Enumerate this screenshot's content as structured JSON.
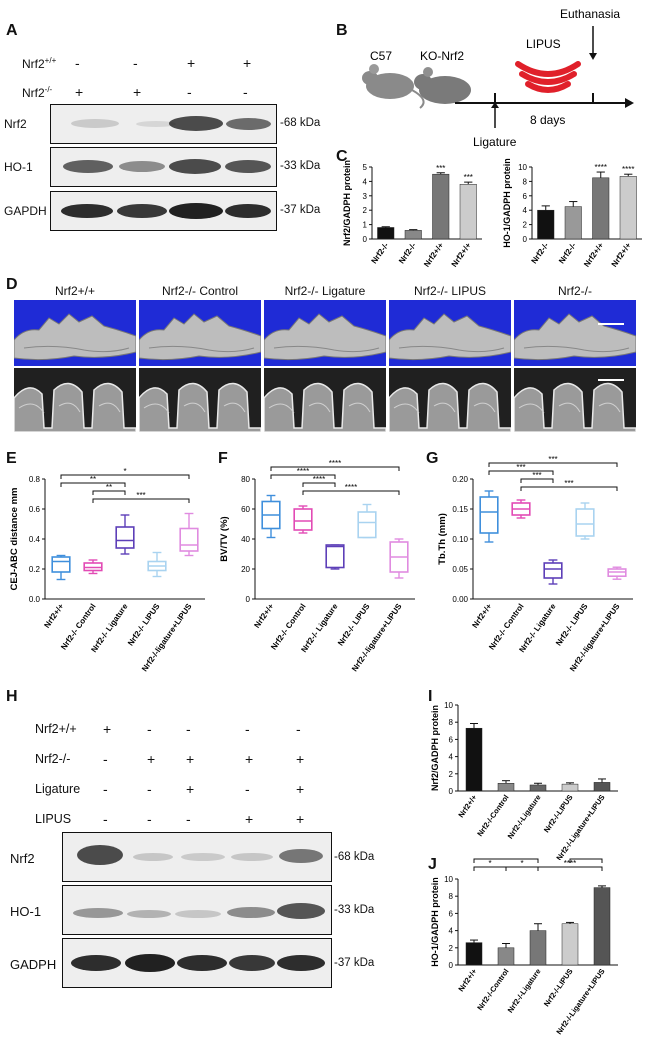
{
  "panels": {
    "A": "A",
    "B": "B",
    "C": "C",
    "D": "D",
    "E": "E",
    "F": "F",
    "G": "G",
    "H": "H",
    "I": "I",
    "J": "J"
  },
  "panelA": {
    "row_wt": "Nrf2+/+",
    "row_ko": "Nrf2-/-",
    "wt_signs": [
      "-",
      "-",
      "+",
      "+"
    ],
    "ko_signs": [
      "+",
      "+",
      "-",
      "-"
    ],
    "blots": [
      {
        "name": "Nrf2",
        "kda": "68 kDa"
      },
      {
        "name": "HO-1",
        "kda": "33 kDa"
      },
      {
        "name": "GAPDH",
        "kda": "37 kDa"
      }
    ]
  },
  "panelB": {
    "c57": "C57",
    "ko": "KO-Nrf2",
    "lipus": "LIPUS",
    "euth": "Euthanasia",
    "days": "8 days",
    "ligature": "Ligature"
  },
  "panelC": {
    "chart1": {
      "ylabel": "Nrf2/GADPH protein",
      "ticks": [
        "0",
        "1",
        "2",
        "3",
        "4",
        "5"
      ]
    },
    "chart2": {
      "ylabel": "HO-1/GADPH protein",
      "ticks": [
        "0",
        "2",
        "4",
        "6",
        "8",
        "10"
      ]
    },
    "cats": [
      "Nrf2-/-",
      "Nrf2-/-",
      "Nrf2+/+",
      "Nrf2+/+"
    ]
  },
  "panelD": {
    "titles": [
      "Nrf2+/+",
      "Nrf2-/- Control",
      "Nrf2-/-  Ligature",
      "Nrf2-/-  LIPUS",
      "Nrf2-/-  Ligature+LIPUS"
    ]
  },
  "panelE": {
    "ylabel": "CEJ-ABC distance mm",
    "ticks": [
      "0.0",
      "0.2",
      "0.4",
      "0.6",
      "0.8"
    ]
  },
  "panelF": {
    "ylabel": "BV/TV (%)",
    "ticks": [
      "0",
      "20",
      "40",
      "60",
      "80"
    ]
  },
  "panelG": {
    "ylabel": "Tb.Th (mm)",
    "ticks": [
      "0.00",
      "0.05",
      "0.10",
      "0.15",
      "0.20"
    ]
  },
  "boxcats": [
    "Nrf2+/+",
    "Nrf2-/- Control",
    "Nrf2-/- Ligature",
    "Nrf2-/- LIPUS",
    "Nrf2-/-ligature+LIPUS"
  ],
  "panelH": {
    "rows": [
      {
        "label": "Nrf2+/+",
        "signs": [
          "+",
          "-",
          "-",
          "-",
          "-"
        ]
      },
      {
        "label": "Nrf2-/-",
        "signs": [
          "-",
          "+",
          "+",
          "+",
          "+"
        ]
      },
      {
        "label": "Ligature",
        "signs": [
          "-",
          "-",
          "+",
          "-",
          "+"
        ]
      },
      {
        "label": "LIPUS",
        "signs": [
          "-",
          "-",
          "-",
          "+",
          "+"
        ]
      }
    ],
    "blots": [
      {
        "name": "Nrf2",
        "kda": "68 kDa"
      },
      {
        "name": "HO-1",
        "kda": "33 kDa"
      },
      {
        "name": "GADPH",
        "kda": "37 kDa"
      }
    ]
  },
  "panelI": {
    "ylabel": "Nrf2/GADPH protein",
    "ticks": [
      "0",
      "2",
      "4",
      "6",
      "8",
      "10"
    ]
  },
  "panelJ": {
    "ylabel": "HO-1/GADPH protein",
    "ticks": [
      "0",
      "2",
      "4",
      "6",
      "8",
      "10"
    ]
  },
  "barcats5": [
    "Nrf2+/+",
    "Nrf2-/-Control",
    "Nrf2-/-Ligature",
    "Nrf2-/-LIPUS",
    "Nrf2-/-Ligature+LIPUS"
  ],
  "sig": {
    "s1": "*",
    "s2": "**",
    "s3": "***",
    "s4": "****"
  },
  "chart_data": [
    {
      "type": "bar",
      "panel": "C-left",
      "categories": [
        "Nrf2-/-",
        "Nrf2-/-",
        "Nrf2+/+",
        "Nrf2+/+"
      ],
      "values": [
        0.8,
        0.6,
        4.5,
        3.8
      ],
      "errors": [
        0.05,
        0.05,
        0.1,
        0.15
      ],
      "sig": [
        "",
        "",
        "***",
        "***"
      ],
      "ylim": [
        0,
        5
      ],
      "colors": [
        "#111111",
        "#888888",
        "#777777",
        "#cccccc"
      ]
    },
    {
      "type": "bar",
      "panel": "C-right",
      "categories": [
        "Nrf2-/-",
        "Nrf2-/-",
        "Nrf2+/+",
        "Nrf2+/+"
      ],
      "values": [
        4.0,
        4.5,
        8.5,
        8.7
      ],
      "errors": [
        0.6,
        0.7,
        0.8,
        0.3
      ],
      "sig": [
        "",
        "",
        "****",
        "****"
      ],
      "ylim": [
        0,
        10
      ],
      "colors": [
        "#111111",
        "#999999",
        "#777777",
        "#cccccc"
      ]
    },
    {
      "type": "box",
      "panel": "E",
      "ylim": [
        0,
        0.8
      ],
      "colors": [
        "#3f8fdc",
        "#e24bb5",
        "#5d3fb8",
        "#a9d3f0",
        "#e08be0"
      ],
      "boxes": [
        [
          0.13,
          0.18,
          0.25,
          0.28,
          0.29
        ],
        [
          0.17,
          0.19,
          0.21,
          0.24,
          0.26
        ],
        [
          0.3,
          0.34,
          0.39,
          0.48,
          0.56
        ],
        [
          0.15,
          0.19,
          0.22,
          0.25,
          0.31
        ],
        [
          0.29,
          0.32,
          0.36,
          0.47,
          0.57
        ]
      ],
      "brackets": [
        {
          "a": 0,
          "b": 4,
          "label": "*"
        },
        {
          "a": 0,
          "b": 2,
          "label": "**"
        },
        {
          "a": 1,
          "b": 2,
          "label": "**"
        },
        {
          "a": 1,
          "b": 4,
          "label": "***"
        }
      ]
    },
    {
      "type": "box",
      "panel": "F",
      "ylim": [
        0,
        80
      ],
      "colors": [
        "#3f8fdc",
        "#e24bb5",
        "#5d3fb8",
        "#a9d3f0",
        "#e08be0"
      ],
      "boxes": [
        [
          41,
          47,
          56,
          65,
          69
        ],
        [
          44,
          46,
          52,
          60,
          62
        ],
        [
          20,
          21,
          35,
          36,
          36
        ],
        [
          41,
          41,
          51,
          58,
          63
        ],
        [
          14,
          18,
          28,
          38,
          40
        ]
      ],
      "brackets": [
        {
          "a": 0,
          "b": 4,
          "label": "****"
        },
        {
          "a": 0,
          "b": 2,
          "label": "****"
        },
        {
          "a": 1,
          "b": 2,
          "label": "****"
        },
        {
          "a": 1,
          "b": 4,
          "label": "****"
        }
      ]
    },
    {
      "type": "box",
      "panel": "G",
      "ylim": [
        0,
        0.2
      ],
      "colors": [
        "#3f8fdc",
        "#e24bb5",
        "#5d3fb8",
        "#a9d3f0",
        "#e08be0"
      ],
      "boxes": [
        [
          0.095,
          0.11,
          0.145,
          0.17,
          0.18
        ],
        [
          0.135,
          0.14,
          0.15,
          0.16,
          0.165
        ],
        [
          0.025,
          0.035,
          0.05,
          0.06,
          0.065
        ],
        [
          0.1,
          0.105,
          0.125,
          0.15,
          0.16
        ],
        [
          0.033,
          0.038,
          0.045,
          0.05,
          0.053
        ]
      ],
      "brackets": [
        {
          "a": 0,
          "b": 4,
          "label": "***"
        },
        {
          "a": 0,
          "b": 2,
          "label": "***"
        },
        {
          "a": 1,
          "b": 2,
          "label": "***"
        },
        {
          "a": 1,
          "b": 4,
          "label": "***"
        }
      ]
    },
    {
      "type": "bar",
      "panel": "I",
      "categories": [
        "Nrf2+/+",
        "Nrf2-/-Control",
        "Nrf2-/-Ligature",
        "Nrf2-/-LIPUS",
        "Nrf2-/-Ligature+LIPUS"
      ],
      "values": [
        7.3,
        0.9,
        0.7,
        0.8,
        1.0
      ],
      "errors": [
        0.55,
        0.3,
        0.2,
        0.15,
        0.4
      ],
      "ylim": [
        0,
        10
      ],
      "colors": [
        "#111111",
        "#888888",
        "#666666",
        "#cccccc",
        "#555555"
      ]
    },
    {
      "type": "bar",
      "panel": "J",
      "categories": [
        "Nrf2+/+",
        "Nrf2-/-Control",
        "Nrf2-/-Ligature",
        "Nrf2-/-LIPUS",
        "Nrf2-/-Ligature+LIPUS"
      ],
      "values": [
        2.6,
        2.0,
        4.0,
        4.8,
        9.0
      ],
      "errors": [
        0.3,
        0.5,
        0.8,
        0.15,
        0.2
      ],
      "ylim": [
        0,
        10
      ],
      "colors": [
        "#111111",
        "#888888",
        "#777777",
        "#cccccc",
        "#555555"
      ],
      "brackets": [
        {
          "a": 0,
          "b": 2,
          "label": "***"
        },
        {
          "a": 0,
          "b": 1,
          "label": "*"
        },
        {
          "a": 1,
          "b": 2,
          "label": "*"
        },
        {
          "a": 3,
          "b": 4,
          "label": "****"
        },
        {
          "a": 2,
          "b": 4,
          "label": "****"
        }
      ]
    }
  ]
}
